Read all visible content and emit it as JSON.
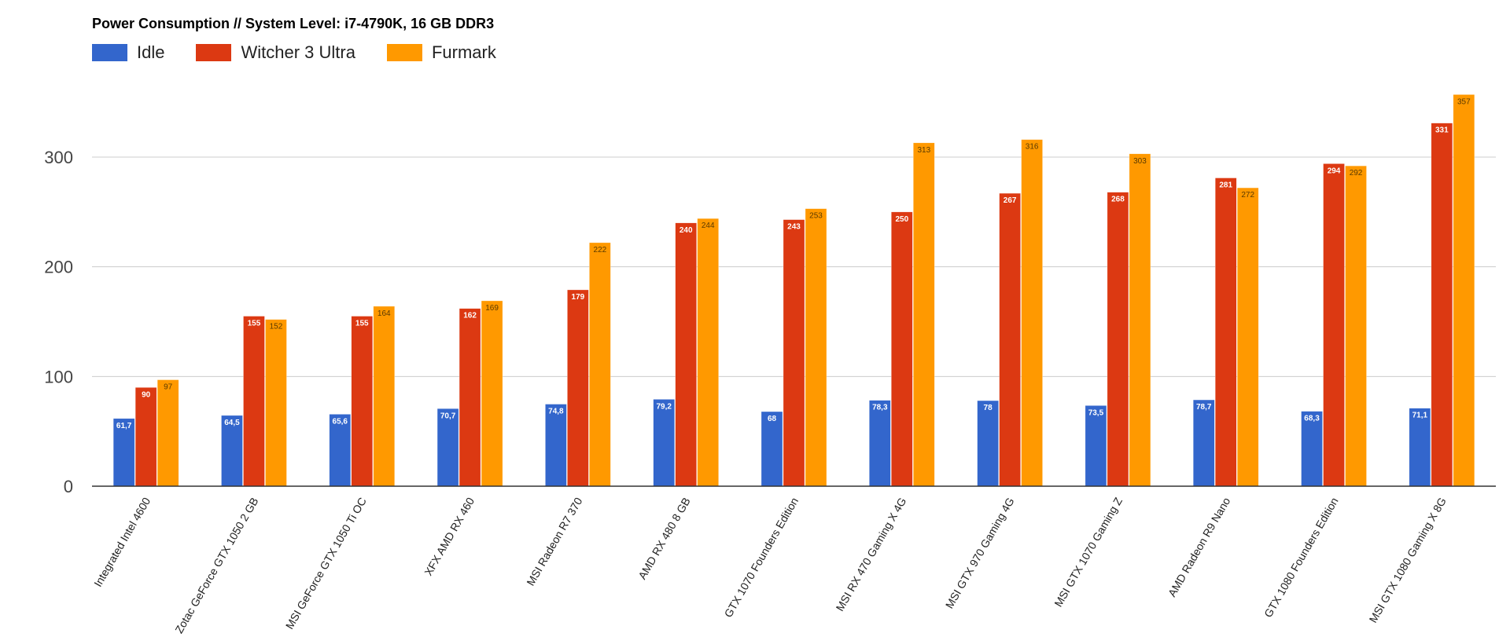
{
  "chart_data": {
    "type": "bar",
    "title": "Power Consumption // System Level: i7-4790K, 16 GB DDR3",
    "xlabel": "",
    "ylabel": "",
    "ylim": [
      0,
      366
    ],
    "yticks": [
      0,
      100,
      200,
      300
    ],
    "grid": true,
    "legend_position": "top-left",
    "categories": [
      "Integrated Intel 4600",
      "Zotac GeForce GTX 1050 2 GB",
      "MSI GeForce GTX 1050 Ti OC",
      "XFX AMD RX 460",
      "MSI Radeon R7 370",
      "AMD RX 480 8 GB",
      "GTX 1070 Founders Edition",
      "MSI RX 470 Gaming X 4G",
      "MSI GTX 970 Gaming 4G",
      "MSI GTX 1070 Gaming Z",
      "AMD Radeon R9 Nano",
      "GTX 1080 Founders Edition",
      "MSI GTX 1080 Gaming X 8G"
    ],
    "series": [
      {
        "name": "Idle",
        "color": "#3366cc",
        "label_color": "#ffffff",
        "values": [
          61.7,
          64.5,
          65.6,
          70.7,
          74.8,
          79.2,
          68,
          78.3,
          78,
          73.5,
          78.7,
          68.3,
          71.1
        ],
        "labels": [
          "61,7",
          "64,5",
          "65,6",
          "70,7",
          "74,8",
          "79,2",
          "68",
          "78,3",
          "78",
          "73,5",
          "78,7",
          "68,3",
          "71,1"
        ]
      },
      {
        "name": "Witcher 3 Ultra",
        "color": "#dc3912",
        "label_color": "#ffffff",
        "values": [
          90,
          155,
          155,
          162,
          179,
          240,
          243,
          250,
          267,
          268,
          281,
          294,
          331
        ],
        "labels": [
          "90",
          "155",
          "155",
          "162",
          "179",
          "240",
          "243",
          "250",
          "267",
          "268",
          "281",
          "294",
          "331"
        ]
      },
      {
        "name": "Furmark",
        "color": "#ff9900",
        "label_color": "#5a3a00",
        "values": [
          97,
          152,
          164,
          169,
          222,
          244,
          253,
          313,
          316,
          303,
          272,
          292,
          357
        ],
        "labels": [
          "97",
          "152",
          "164",
          "169",
          "222",
          "244",
          "253",
          "313",
          "316",
          "303",
          "272",
          "292",
          "357"
        ]
      }
    ]
  }
}
